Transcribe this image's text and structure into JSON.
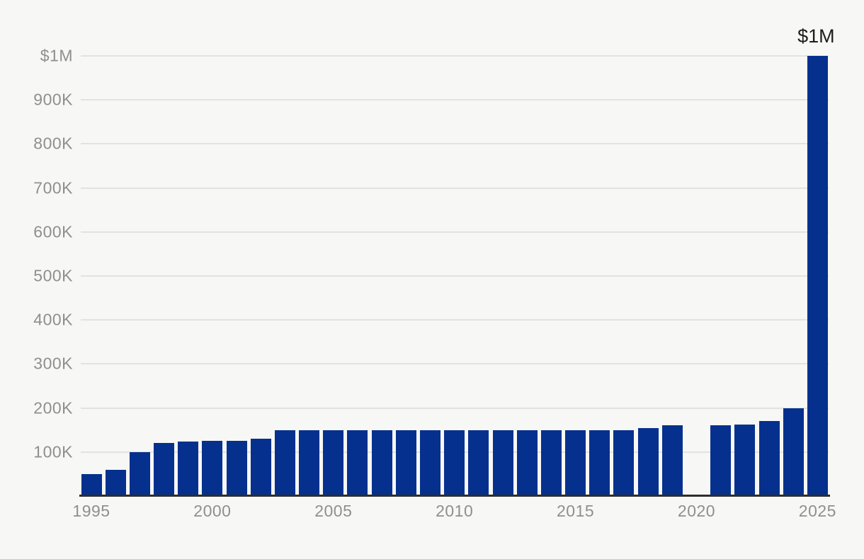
{
  "chart_data": {
    "type": "bar",
    "title": "",
    "xlabel": "",
    "ylabel": "",
    "x": [
      1995,
      1996,
      1997,
      1998,
      1999,
      2000,
      2001,
      2002,
      2003,
      2004,
      2005,
      2006,
      2007,
      2008,
      2009,
      2010,
      2011,
      2012,
      2013,
      2014,
      2015,
      2016,
      2017,
      2018,
      2019,
      2020,
      2021,
      2022,
      2023,
      2024,
      2025
    ],
    "values": [
      50000,
      60000,
      100000,
      120000,
      123000,
      125000,
      125000,
      130000,
      150000,
      150000,
      150000,
      150000,
      150000,
      150000,
      150000,
      150000,
      150000,
      150000,
      150000,
      150000,
      150000,
      150000,
      150000,
      155000,
      160000,
      null,
      160000,
      162000,
      170000,
      200000,
      1000000
    ],
    "missing_note": "no bar rendered for 2020",
    "ylim": [
      0,
      1000000
    ],
    "ytick_values": [
      100000,
      200000,
      300000,
      400000,
      500000,
      600000,
      700000,
      800000,
      900000,
      1000000
    ],
    "ytick_labels": [
      "100K",
      "200K",
      "300K",
      "400K",
      "500K",
      "600K",
      "700K",
      "800K",
      "900K",
      "$1M"
    ],
    "xtick_years": [
      1995,
      2000,
      2005,
      2010,
      2015,
      2020,
      2025
    ],
    "xtick_labels": [
      "1995",
      "2000",
      "2005",
      "2010",
      "2015",
      "2020",
      "2025"
    ],
    "annotation": {
      "text": "$1M",
      "year": 2025
    },
    "grid": "horizontal",
    "legend": "none"
  },
  "colors": {
    "background": "#f7f7f5",
    "bar": "#06308e",
    "gridline": "#e2e2e0",
    "axis_line": "#2d2d2d",
    "tick_label": "#8f8f8f",
    "annotation": "#1c1c1c"
  }
}
